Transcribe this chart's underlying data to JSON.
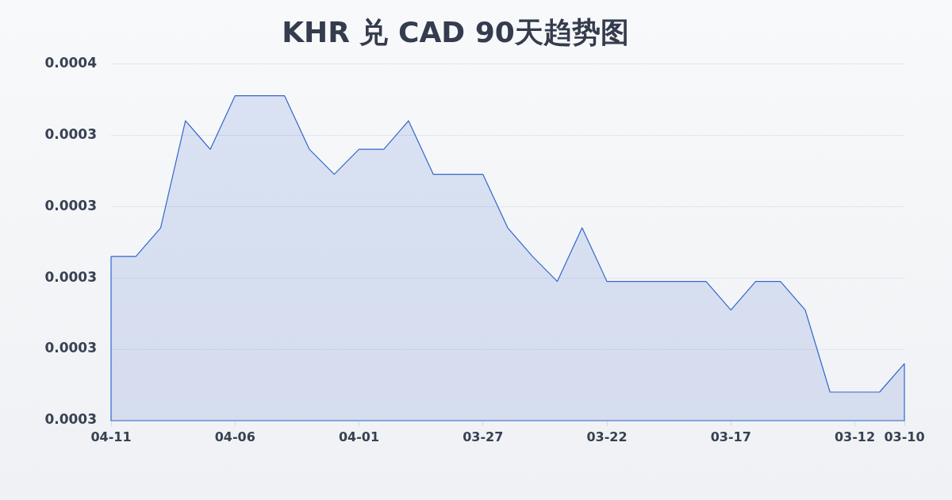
{
  "chart_data": {
    "type": "area",
    "title": "KHR 兑 CAD 90天趋势图",
    "categories": [
      "04-11",
      null,
      null,
      null,
      null,
      "04-06",
      null,
      null,
      null,
      null,
      "04-01",
      null,
      null,
      null,
      null,
      "03-27",
      null,
      null,
      null,
      null,
      "03-22",
      null,
      null,
      null,
      null,
      "03-17",
      null,
      null,
      null,
      null,
      "03-12",
      null,
      "03-10"
    ],
    "values": [
      0.0003446,
      0.0003446,
      0.0003454,
      0.0003484,
      0.0003476,
      0.0003491,
      0.0003491,
      0.0003491,
      0.0003476,
      0.0003469,
      0.0003476,
      0.0003476,
      0.0003484,
      0.0003469,
      0.0003469,
      0.0003469,
      0.0003454,
      0.0003446,
      0.0003439,
      0.0003454,
      0.0003439,
      0.0003439,
      0.0003439,
      0.0003439,
      0.0003439,
      0.0003431,
      0.0003439,
      0.0003439,
      0.0003431,
      0.0003408,
      0.0003408,
      0.0003408,
      0.0003416
    ],
    "color": "#3366cc",
    "ylim": [
      0.00034,
      0.00035
    ],
    "yticks": [
      {
        "value": 0.00034,
        "label": "0.0003"
      },
      {
        "value": 0.000342,
        "label": "0.0003"
      },
      {
        "value": 0.000344,
        "label": "0.0003"
      },
      {
        "value": 0.000346,
        "label": "0.0003"
      },
      {
        "value": 0.000348,
        "label": "0.0003"
      },
      {
        "value": 0.00035,
        "label": "0.0004"
      }
    ],
    "grid": "y"
  }
}
